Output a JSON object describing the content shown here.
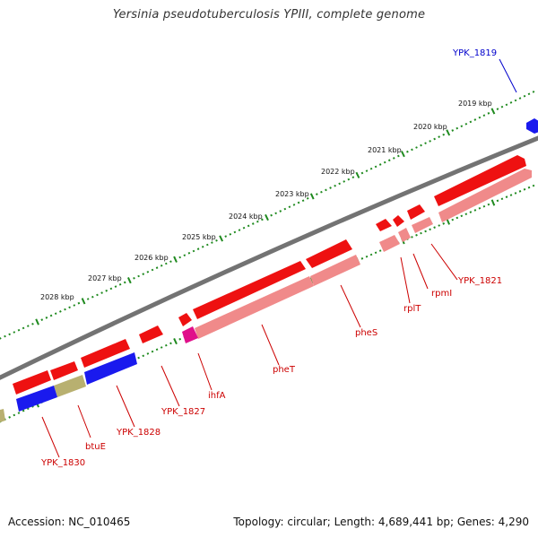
{
  "title": "Yersinia pseudotuberculosis YPIII, complete genome",
  "ruler": {
    "color": "#1f8a1f",
    "ticks": [
      "2019 kbp",
      "2020 kbp",
      "2021 kbp",
      "2022 kbp",
      "2023 kbp",
      "2024 kbp",
      "2025 kbp",
      "2026 kbp",
      "2027 kbp",
      "2028 kbp"
    ]
  },
  "backbone_color": "#777777",
  "colors": {
    "cds": "#ee1111",
    "cds_shadow": "#b80000",
    "rna": "#f08a8a",
    "rna_shadow": "#c86666",
    "blue_gene": "#1a1aee",
    "olive_gene": "#b8b070",
    "magenta_gene": "#e0108a",
    "label_red": "#cc0000",
    "label_blue": "#0000cc"
  },
  "gene_labels": [
    {
      "text": "YPK_1819",
      "color": "blue"
    },
    {
      "text": "YPK_1821",
      "color": "red"
    },
    {
      "text": "rpmI",
      "color": "red"
    },
    {
      "text": "rplT",
      "color": "red"
    },
    {
      "text": "pheS",
      "color": "red"
    },
    {
      "text": "pheT",
      "color": "red"
    },
    {
      "text": "ihfA",
      "color": "red"
    },
    {
      "text": "YPK_1827",
      "color": "red"
    },
    {
      "text": "YPK_1828",
      "color": "red"
    },
    {
      "text": "btuE",
      "color": "red"
    },
    {
      "text": "YPK_1830",
      "color": "red"
    }
  ],
  "footer": {
    "accession": "Accession: NC_010465",
    "summary": "Topology: circular; Length: 4,689,441 bp; Genes: 4,290"
  }
}
